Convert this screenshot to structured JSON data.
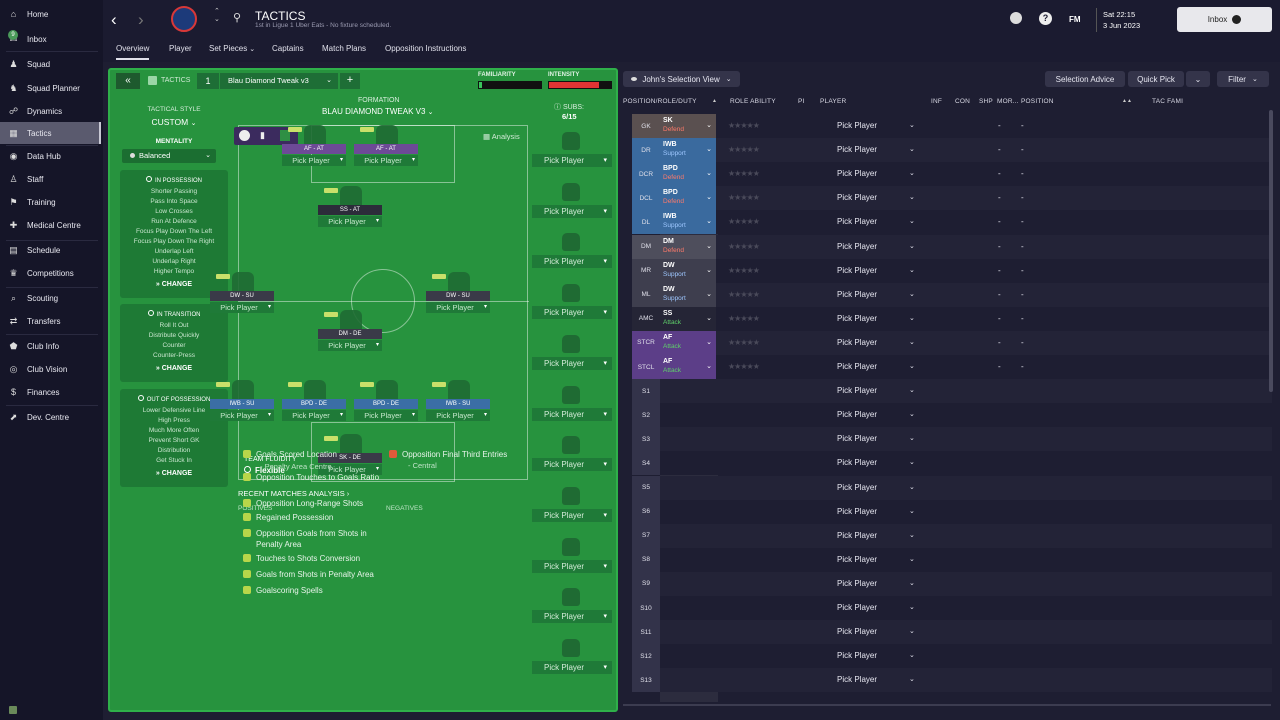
{
  "sidebar": {
    "badge": "9",
    "items": [
      "Home",
      "Inbox",
      "Squad",
      "Squad Planner",
      "Dynamics",
      "Tactics",
      "Data Hub",
      "Staff",
      "Training",
      "Medical Centre",
      "Schedule",
      "Competitions",
      "Scouting",
      "Transfers",
      "Club Info",
      "Club Vision",
      "Finances",
      "Dev. Centre"
    ]
  },
  "header": {
    "title": "TACTICS",
    "subtitle": "1st in Ligue 1 Uber Eats - No fixture scheduled.",
    "brand": "FM",
    "day_time": "Sat 22:15",
    "date": "3 Jun 2023",
    "inbox_label": "Inbox"
  },
  "tabs": [
    "Overview",
    "Player",
    "Set Pieces",
    "Captains",
    "Match Plans",
    "Opposition Instructions"
  ],
  "tactic_bar": {
    "label": "TACTICS",
    "slot": "1",
    "name": "Blau Diamond Tweak v3",
    "familiarity_label": "FAMILIARITY",
    "intensity_label": "INTENSITY",
    "familiarity_level": 0.05,
    "intensity_level": 0.8
  },
  "style": {
    "heading": "TACTICAL STYLE",
    "value": "CUSTOM",
    "mentality_label": "MENTALITY",
    "mentality": "Balanced"
  },
  "in_possession": {
    "title": "IN POSSESSION",
    "items": [
      "Shorter Passing",
      "Pass Into Space",
      "Low Crosses",
      "Run At Defence",
      "Focus Play Down The Left",
      "Focus Play Down The Right",
      "Underlap Left",
      "Underlap Right",
      "Higher Tempo"
    ],
    "change": "CHANGE"
  },
  "in_transition": {
    "title": "IN TRANSITION",
    "items": [
      "Roll It Out",
      "Distribute Quickly",
      "Counter",
      "Counter-Press"
    ],
    "change": "CHANGE"
  },
  "out_possession": {
    "title": "OUT OF POSSESSION",
    "items": [
      "Lower Defensive Line",
      "High Press",
      "Much More Often",
      "Prevent Short GK",
      "Distribution",
      "Get Stuck In"
    ],
    "change": "CHANGE"
  },
  "formation": {
    "label": "FORMATION",
    "name": "BLAU DIAMOND TWEAK V3",
    "analysis": "Analysis",
    "subs_label": "SUBS:",
    "subs_count": "6/15",
    "fluidity_label": "TEAM FLUIDITY",
    "fluidity": "Flexible",
    "pick": "Pick Player"
  },
  "pitch_players": [
    {
      "role": "AF - AT",
      "type": "att"
    },
    {
      "role": "AF - AT",
      "type": "att"
    },
    {
      "role": "SS - AT",
      "type": "drk"
    },
    {
      "role": "DW - SU",
      "type": "def"
    },
    {
      "role": "DW - SU",
      "type": "def"
    },
    {
      "role": "DM - DE",
      "type": "def"
    },
    {
      "role": "IWB - SU",
      "type": "sup"
    },
    {
      "role": "BPD - DE",
      "type": "sup"
    },
    {
      "role": "BPD - DE",
      "type": "sup"
    },
    {
      "role": "IWB - SU",
      "type": "sup"
    },
    {
      "role": "SK - DE",
      "type": "def"
    }
  ],
  "recent": {
    "title": "RECENT MATCHES ANALYSIS",
    "positives_label": "POSITIVES",
    "negatives_label": "NEGATIVES",
    "positives": [
      "Goals Scored Location",
      "- Penalty Area Centre",
      "Opposition Touches to Goals Ratio",
      "Opposition Long-Range Shots",
      "Regained Possession",
      "Opposition Goals from Shots in Penalty Area",
      "Touches to Shots Conversion",
      "Goals from Shots in Penalty Area",
      "Goalscoring Spells"
    ],
    "negatives": [
      "Opposition Final Third Entries",
      "- Central"
    ]
  },
  "selection": {
    "view": "John's Selection View",
    "advice": "Selection Advice",
    "quick_pick": "Quick Pick",
    "filter": "Filter",
    "columns": [
      "POSITION/ROLE/DUTY",
      "ROLE ABILITY",
      "PI",
      "PLAYER",
      "INF",
      "CON",
      "SHP",
      "MOR...",
      "POSITION",
      "TAC FAMI"
    ],
    "rows": [
      {
        "pos": "GK",
        "role": "SK",
        "duty": "Defend",
        "color": "#5a5050",
        "duty_color": "#ff7a6a"
      },
      {
        "pos": "DR",
        "role": "IWB",
        "duty": "Support",
        "color": "#3a6a9e",
        "duty_color": "#9ec7ff"
      },
      {
        "pos": "DCR",
        "role": "BPD",
        "duty": "Defend",
        "color": "#3a6a9e",
        "duty_color": "#ff7a6a"
      },
      {
        "pos": "DCL",
        "role": "BPD",
        "duty": "Defend",
        "color": "#3a6a9e",
        "duty_color": "#ff7a6a"
      },
      {
        "pos": "DL",
        "role": "IWB",
        "duty": "Support",
        "color": "#3a6a9e",
        "duty_color": "#9ec7ff"
      },
      {
        "pos": "DM",
        "role": "DM",
        "duty": "Defend",
        "color": "#4e4e5c",
        "duty_color": "#ff7a6a"
      },
      {
        "pos": "MR",
        "role": "DW",
        "duty": "Support",
        "color": "#3e3e4e",
        "duty_color": "#9ec7ff"
      },
      {
        "pos": "ML",
        "role": "DW",
        "duty": "Support",
        "color": "#3e3e4e",
        "duty_color": "#9ec7ff"
      },
      {
        "pos": "AMC",
        "role": "SS",
        "duty": "Attack",
        "color": "#252536",
        "duty_color": "#5fd06a"
      },
      {
        "pos": "STCR",
        "role": "AF",
        "duty": "Attack",
        "color": "#5c3e88",
        "duty_color": "#5fd06a"
      },
      {
        "pos": "STCL",
        "role": "AF",
        "duty": "Attack",
        "color": "#5c3e88",
        "duty_color": "#5fd06a"
      }
    ],
    "subs": [
      "S1",
      "S2",
      "S3",
      "S4",
      "S5",
      "S6",
      "S7",
      "S8",
      "S9",
      "S10",
      "S11",
      "S12",
      "S13"
    ],
    "pick": "Pick Player",
    "dash": "-",
    "stars": "★★★★★"
  }
}
